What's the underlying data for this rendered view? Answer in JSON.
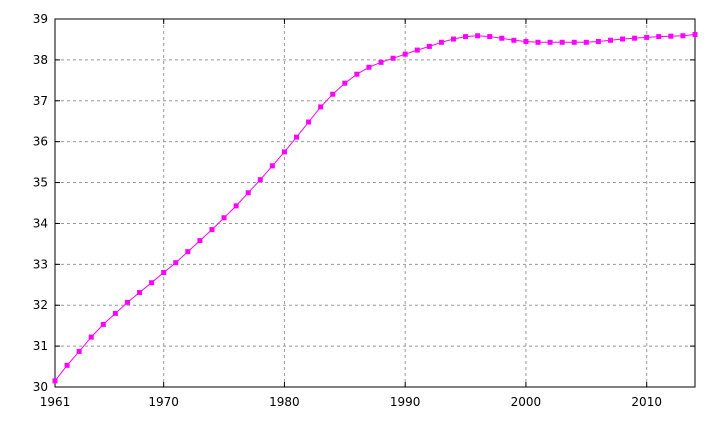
{
  "chart_data": {
    "type": "line",
    "title": "",
    "xlabel": "",
    "ylabel": "",
    "xlim": [
      1961,
      2014
    ],
    "ylim": [
      30,
      39
    ],
    "x_ticks": [
      "1961",
      "1970",
      "1980",
      "1990",
      "2000",
      "2010"
    ],
    "y_ticks": [
      "30",
      "31",
      "32",
      "33",
      "34",
      "35",
      "36",
      "37",
      "38",
      "39"
    ],
    "grid": true,
    "legend": "none",
    "color": "#ff00ff",
    "marker": "square",
    "series": [
      {
        "x": [
          1961,
          1962,
          1963,
          1964,
          1965,
          1966,
          1967,
          1968,
          1969,
          1970,
          1971,
          1972,
          1973,
          1974,
          1975,
          1976,
          1977,
          1978,
          1979,
          1980,
          1981,
          1982,
          1983,
          1984,
          1985,
          1986,
          1987,
          1988,
          1989,
          1990,
          1991,
          1992,
          1993,
          1994,
          1995,
          1996,
          1997,
          1998,
          1999,
          2000,
          2001,
          2002,
          2003,
          2004,
          2005,
          2006,
          2007,
          2008,
          2009,
          2010,
          2011,
          2012,
          2013,
          2014
        ],
        "values": [
          30.15,
          30.53,
          30.87,
          31.22,
          31.53,
          31.8,
          32.07,
          32.31,
          32.55,
          32.8,
          33.04,
          33.31,
          33.58,
          33.85,
          34.14,
          34.43,
          34.75,
          35.07,
          35.41,
          35.75,
          36.11,
          36.48,
          36.85,
          37.16,
          37.43,
          37.65,
          37.82,
          37.94,
          38.04,
          38.14,
          38.24,
          38.33,
          38.43,
          38.51,
          38.57,
          38.59,
          38.57,
          38.53,
          38.48,
          38.45,
          38.43,
          38.43,
          38.43,
          38.43,
          38.43,
          38.45,
          38.48,
          38.51,
          38.53,
          38.55,
          38.57,
          38.58,
          38.59,
          38.62
        ]
      }
    ]
  }
}
